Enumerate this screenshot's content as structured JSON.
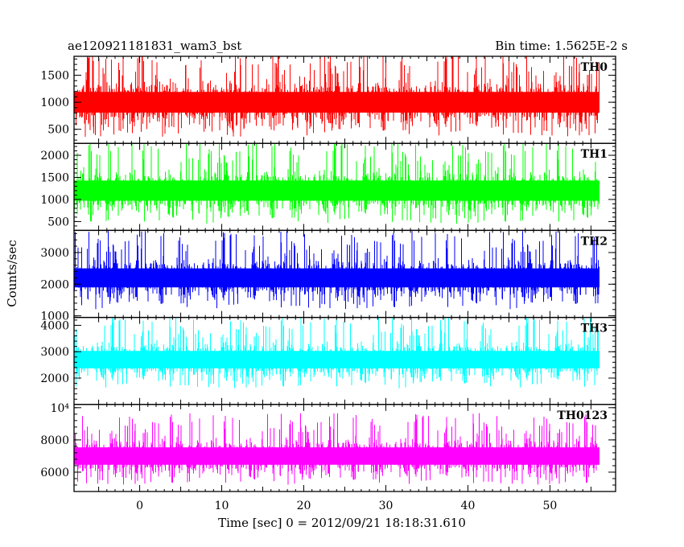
{
  "header": {
    "title": "ae120921181831_wam3_bst",
    "bin_time": "Bin time: 1.5625E-2 s"
  },
  "chart_data": {
    "type": "line",
    "xlabel": "Time [sec] 0 = 2012/09/21 18:18:31.610",
    "ylabel": "Counts/sec",
    "xlim": [
      -8,
      58
    ],
    "x_range_data": [
      -8,
      56
    ],
    "x_ticks": [
      0,
      10,
      20,
      30,
      40,
      50
    ],
    "panels": [
      {
        "name": "TH0",
        "color": "#ff0000",
        "ylim": [
          240,
          1850
        ],
        "yticks": [
          500,
          1000,
          1500
        ],
        "ytick_labels": [
          "500",
          "1000",
          "1500"
        ],
        "baseline_mean": 1000,
        "spread": 320,
        "min": 250,
        "max": 1850
      },
      {
        "name": "TH1",
        "color": "#00ff00",
        "ylim": [
          300,
          2270
        ],
        "yticks": [
          500,
          1000,
          1500,
          2000
        ],
        "ytick_labels": [
          "500",
          "1000",
          "1500",
          "2000"
        ],
        "baseline_mean": 1200,
        "spread": 380,
        "min": 320,
        "max": 2270
      },
      {
        "name": "TH2",
        "color": "#0000ff",
        "ylim": [
          950,
          3700
        ],
        "yticks": [
          1000,
          2000,
          3000
        ],
        "ytick_labels": [
          "1000",
          "2000",
          "3000"
        ],
        "baseline_mean": 2200,
        "spread": 500,
        "min": 1000,
        "max": 3700
      },
      {
        "name": "TH3",
        "color": "#00ffff",
        "ylim": [
          1000,
          4300
        ],
        "yticks": [
          2000,
          3000,
          4000
        ],
        "ytick_labels": [
          "2000",
          "3000",
          "4000"
        ],
        "baseline_mean": 2700,
        "spread": 550,
        "min": 1200,
        "max": 4300
      },
      {
        "name": "TH0123",
        "color": "#ff00ff",
        "ylim": [
          4800,
          10200
        ],
        "yticks": [
          6000,
          8000,
          10000
        ],
        "ytick_labels": [
          "6000",
          "8000",
          "10⁴"
        ],
        "baseline_mean": 7000,
        "spread": 900,
        "min": 4800,
        "max": 10200
      }
    ]
  }
}
